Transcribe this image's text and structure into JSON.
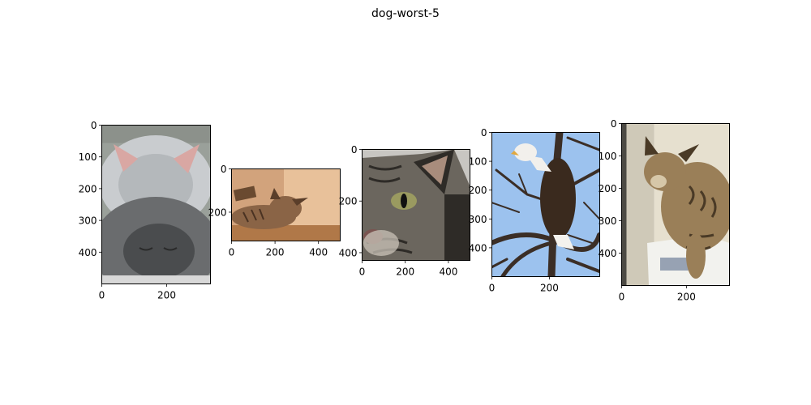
{
  "title": "dog-worst-5",
  "chart_data": {
    "type": "image-grid",
    "title": "dog-worst-5",
    "panels": [
      {
        "subject": "sleeping grey kittens",
        "image_size": [
          335,
          500
        ],
        "xticks": [
          0,
          200
        ],
        "yticks": [
          0,
          100,
          200,
          300,
          400
        ],
        "palette": {
          "bg": "#9aa09a",
          "main": "#6a6c6e",
          "dark": "#4a4c4e",
          "light": "#c9cccf",
          "ear": "#d9a7a3"
        }
      },
      {
        "subject": "tabby kitten lying down",
        "image_size": [
          500,
          333
        ],
        "xticks": [
          0,
          200,
          400
        ],
        "yticks": [
          0,
          200
        ],
        "palette": {
          "bg": "#d2a37c",
          "main": "#8a6446",
          "dark": "#5a3e2a",
          "light": "#e8c19a",
          "floor": "#b07848"
        }
      },
      {
        "subject": "tabby cat face close-up",
        "image_size": [
          500,
          430
        ],
        "xticks": [
          0,
          200,
          400
        ],
        "yticks": [
          0,
          200,
          400
        ],
        "palette": {
          "bg": "#c8c6c2",
          "main": "#6b665e",
          "dark": "#2e2b27",
          "light": "#c9c3b8",
          "eye": "#9a9a60"
        }
      },
      {
        "subject": "bald eagle in tree",
        "image_size": [
          375,
          500
        ],
        "xticks": [
          0,
          200
        ],
        "yticks": [
          0,
          100,
          200,
          300,
          400
        ],
        "palette": {
          "sky": "#9cc2ee",
          "branch": "#3b2e26",
          "body": "#3a2a1e",
          "head": "#f2f0ec",
          "beak": "#e0a840"
        }
      },
      {
        "subject": "tabby cat on cat litter bag",
        "image_size": [
          333,
          500
        ],
        "xticks": [
          0,
          200
        ],
        "yticks": [
          0,
          100,
          200,
          300,
          400
        ],
        "palette": {
          "bg": "#e6e0cf",
          "main": "#9a7f58",
          "dark": "#4a3a26",
          "light": "#d6c7a8",
          "bag": "#f2f2ee",
          "bagtext": "#5a6c8c"
        }
      }
    ]
  }
}
